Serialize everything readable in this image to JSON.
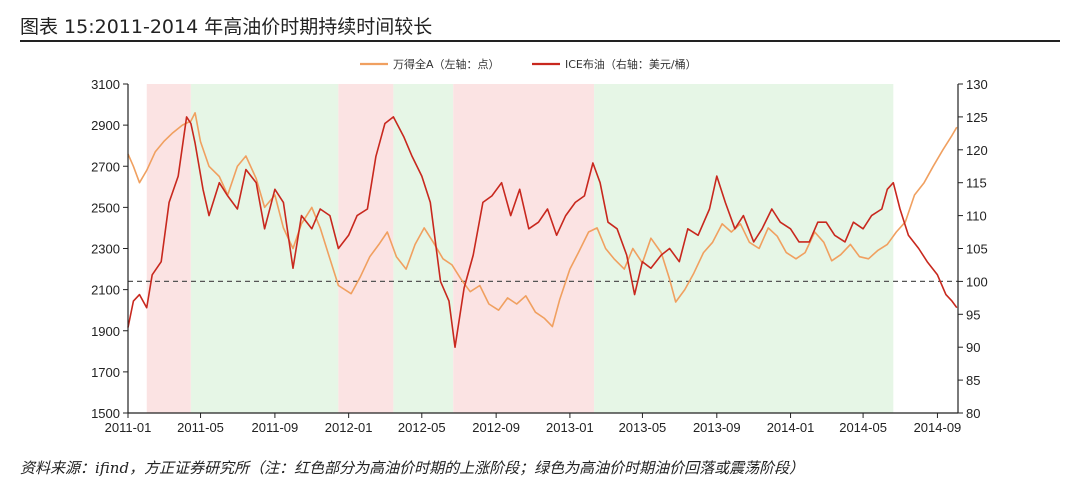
{
  "figure": {
    "title": "图表 15:2011-2014 年高油价时期持续时间较长",
    "source": "资料来源：ifind，方正证券研究所（注：红色部分为高油价时期的上涨阶段；绿色为高油价时期油价回落或震荡阶段）"
  },
  "chart_data": {
    "type": "line",
    "legend": [
      "万得全A（左轴：点）",
      "ICE布油（右轴：美元/桶）"
    ],
    "legend_position": "top-center",
    "x_ticks": [
      "2011-01",
      "2011-05",
      "2011-09",
      "2012-01",
      "2012-05",
      "2012-09",
      "2013-01",
      "2013-05",
      "2013-09",
      "2014-01",
      "2014-05",
      "2014-09"
    ],
    "x_range": [
      "2011-01-01",
      "2014-10-05"
    ],
    "y_left_ticks": [
      "3100",
      "2900",
      "2700",
      "2500",
      "2300",
      "2100",
      "1900",
      "1700",
      "1500"
    ],
    "y_left_range": [
      1500,
      3100
    ],
    "y_right_ticks": [
      "130",
      "125",
      "120",
      "115",
      "110",
      "105",
      "100",
      "95",
      "90",
      "85",
      "80"
    ],
    "y_right_range": [
      80,
      130
    ],
    "reference_line": {
      "axis": "right",
      "value": 100,
      "style": "dashed"
    },
    "shaded_periods": [
      {
        "phase": "rise",
        "color": "#fbe3e3",
        "start": "2011-02-01",
        "end": "2011-04-15"
      },
      {
        "phase": "fall_or_range",
        "color": "#e6f6e6",
        "start": "2011-04-15",
        "end": "2011-12-15"
      },
      {
        "phase": "rise",
        "color": "#fbe3e3",
        "start": "2011-12-15",
        "end": "2012-03-15"
      },
      {
        "phase": "fall_or_range",
        "color": "#e6f6e6",
        "start": "2012-03-15",
        "end": "2012-06-22"
      },
      {
        "phase": "rise",
        "color": "#fbe3e3",
        "start": "2012-06-22",
        "end": "2013-02-10"
      },
      {
        "phase": "fall_or_range",
        "color": "#e6f6e6",
        "start": "2013-02-10",
        "end": "2014-06-20"
      }
    ],
    "series": [
      {
        "name": "万得全A（左轴：点）",
        "axis": "left",
        "color": "#f0a060",
        "points": [
          [
            "2011-01-01",
            2760
          ],
          [
            "2011-01-10",
            2700
          ],
          [
            "2011-01-20",
            2620
          ],
          [
            "2011-02-01",
            2680
          ],
          [
            "2011-02-15",
            2770
          ],
          [
            "2011-03-01",
            2820
          ],
          [
            "2011-03-15",
            2860
          ],
          [
            "2011-04-01",
            2900
          ],
          [
            "2011-04-15",
            2920
          ],
          [
            "2011-04-22",
            2960
          ],
          [
            "2011-05-01",
            2820
          ],
          [
            "2011-05-15",
            2700
          ],
          [
            "2011-06-01",
            2650
          ],
          [
            "2011-06-15",
            2560
          ],
          [
            "2011-07-01",
            2700
          ],
          [
            "2011-07-15",
            2750
          ],
          [
            "2011-08-01",
            2640
          ],
          [
            "2011-08-15",
            2500
          ],
          [
            "2011-09-01",
            2560
          ],
          [
            "2011-09-15",
            2400
          ],
          [
            "2011-10-01",
            2300
          ],
          [
            "2011-10-15",
            2420
          ],
          [
            "2011-11-01",
            2500
          ],
          [
            "2011-11-15",
            2400
          ],
          [
            "2011-12-01",
            2250
          ],
          [
            "2011-12-15",
            2120
          ],
          [
            "2012-01-05",
            2080
          ],
          [
            "2012-01-20",
            2160
          ],
          [
            "2012-02-05",
            2260
          ],
          [
            "2012-02-20",
            2320
          ],
          [
            "2012-03-05",
            2380
          ],
          [
            "2012-03-20",
            2260
          ],
          [
            "2012-04-05",
            2200
          ],
          [
            "2012-04-20",
            2320
          ],
          [
            "2012-05-05",
            2400
          ],
          [
            "2012-05-20",
            2330
          ],
          [
            "2012-06-05",
            2250
          ],
          [
            "2012-06-20",
            2220
          ],
          [
            "2012-07-05",
            2150
          ],
          [
            "2012-07-20",
            2090
          ],
          [
            "2012-08-05",
            2120
          ],
          [
            "2012-08-20",
            2030
          ],
          [
            "2012-09-05",
            2000
          ],
          [
            "2012-09-20",
            2060
          ],
          [
            "2012-10-05",
            2030
          ],
          [
            "2012-10-20",
            2070
          ],
          [
            "2012-11-05",
            1990
          ],
          [
            "2012-11-20",
            1960
          ],
          [
            "2012-12-03",
            1920
          ],
          [
            "2012-12-15",
            2050
          ],
          [
            "2013-01-01",
            2200
          ],
          [
            "2013-01-15",
            2280
          ],
          [
            "2013-02-01",
            2380
          ],
          [
            "2013-02-15",
            2400
          ],
          [
            "2013-03-01",
            2300
          ],
          [
            "2013-03-15",
            2250
          ],
          [
            "2013-04-01",
            2200
          ],
          [
            "2013-04-15",
            2300
          ],
          [
            "2013-05-01",
            2230
          ],
          [
            "2013-05-15",
            2350
          ],
          [
            "2013-06-01",
            2280
          ],
          [
            "2013-06-15",
            2150
          ],
          [
            "2013-06-25",
            2040
          ],
          [
            "2013-07-10",
            2100
          ],
          [
            "2013-07-25",
            2180
          ],
          [
            "2013-08-10",
            2280
          ],
          [
            "2013-08-25",
            2330
          ],
          [
            "2013-09-10",
            2420
          ],
          [
            "2013-09-25",
            2380
          ],
          [
            "2013-10-10",
            2420
          ],
          [
            "2013-10-25",
            2330
          ],
          [
            "2013-11-10",
            2300
          ],
          [
            "2013-11-25",
            2400
          ],
          [
            "2013-12-10",
            2360
          ],
          [
            "2013-12-25",
            2280
          ],
          [
            "2014-01-10",
            2250
          ],
          [
            "2014-01-25",
            2280
          ],
          [
            "2014-02-10",
            2380
          ],
          [
            "2014-02-25",
            2330
          ],
          [
            "2014-03-10",
            2240
          ],
          [
            "2014-03-25",
            2270
          ],
          [
            "2014-04-10",
            2320
          ],
          [
            "2014-04-25",
            2260
          ],
          [
            "2014-05-10",
            2250
          ],
          [
            "2014-05-25",
            2290
          ],
          [
            "2014-06-10",
            2320
          ],
          [
            "2014-06-25",
            2380
          ],
          [
            "2014-07-10",
            2430
          ],
          [
            "2014-07-25",
            2560
          ],
          [
            "2014-08-10",
            2620
          ],
          [
            "2014-08-25",
            2700
          ],
          [
            "2014-09-10",
            2780
          ],
          [
            "2014-09-25",
            2850
          ],
          [
            "2014-10-03",
            2890
          ]
        ]
      },
      {
        "name": "ICE布油（右轴：美元/桶）",
        "axis": "right",
        "color": "#c8281e",
        "points": [
          [
            "2011-01-01",
            93
          ],
          [
            "2011-01-10",
            97
          ],
          [
            "2011-01-20",
            98
          ],
          [
            "2011-02-01",
            96
          ],
          [
            "2011-02-10",
            101
          ],
          [
            "2011-02-25",
            103
          ],
          [
            "2011-03-10",
            112
          ],
          [
            "2011-03-25",
            116
          ],
          [
            "2011-04-08",
            125
          ],
          [
            "2011-04-15",
            124
          ],
          [
            "2011-04-22",
            121
          ],
          [
            "2011-05-05",
            114
          ],
          [
            "2011-05-15",
            110
          ],
          [
            "2011-06-01",
            115
          ],
          [
            "2011-06-15",
            113
          ],
          [
            "2011-07-01",
            111
          ],
          [
            "2011-07-15",
            117
          ],
          [
            "2011-08-01",
            115
          ],
          [
            "2011-08-15",
            108
          ],
          [
            "2011-09-01",
            114
          ],
          [
            "2011-09-15",
            112
          ],
          [
            "2011-10-01",
            102
          ],
          [
            "2011-10-15",
            110
          ],
          [
            "2011-11-01",
            108
          ],
          [
            "2011-11-15",
            111
          ],
          [
            "2011-12-01",
            110
          ],
          [
            "2011-12-15",
            105
          ],
          [
            "2012-01-01",
            107
          ],
          [
            "2012-01-15",
            110
          ],
          [
            "2012-02-01",
            111
          ],
          [
            "2012-02-15",
            119
          ],
          [
            "2012-03-01",
            124
          ],
          [
            "2012-03-15",
            125
          ],
          [
            "2012-04-01",
            122
          ],
          [
            "2012-04-15",
            119
          ],
          [
            "2012-05-01",
            116
          ],
          [
            "2012-05-15",
            112
          ],
          [
            "2012-06-01",
            100
          ],
          [
            "2012-06-15",
            97
          ],
          [
            "2012-06-25",
            90
          ],
          [
            "2012-07-10",
            99
          ],
          [
            "2012-07-25",
            104
          ],
          [
            "2012-08-10",
            112
          ],
          [
            "2012-08-25",
            113
          ],
          [
            "2012-09-10",
            115
          ],
          [
            "2012-09-25",
            110
          ],
          [
            "2012-10-10",
            114
          ],
          [
            "2012-10-25",
            108
          ],
          [
            "2012-11-10",
            109
          ],
          [
            "2012-11-25",
            111
          ],
          [
            "2012-12-10",
            107
          ],
          [
            "2012-12-25",
            110
          ],
          [
            "2013-01-10",
            112
          ],
          [
            "2013-01-25",
            113
          ],
          [
            "2013-02-08",
            118
          ],
          [
            "2013-02-20",
            115
          ],
          [
            "2013-03-05",
            109
          ],
          [
            "2013-03-20",
            108
          ],
          [
            "2013-04-05",
            104
          ],
          [
            "2013-04-18",
            98
          ],
          [
            "2013-05-01",
            103
          ],
          [
            "2013-05-15",
            102
          ],
          [
            "2013-06-01",
            104
          ],
          [
            "2013-06-15",
            105
          ],
          [
            "2013-07-01",
            103
          ],
          [
            "2013-07-15",
            108
          ],
          [
            "2013-08-01",
            107
          ],
          [
            "2013-08-20",
            111
          ],
          [
            "2013-09-01",
            116
          ],
          [
            "2013-09-15",
            112
          ],
          [
            "2013-10-01",
            108
          ],
          [
            "2013-10-15",
            110
          ],
          [
            "2013-11-01",
            106
          ],
          [
            "2013-11-15",
            108
          ],
          [
            "2013-12-01",
            111
          ],
          [
            "2013-12-15",
            109
          ],
          [
            "2014-01-01",
            108
          ],
          [
            "2014-01-15",
            106
          ],
          [
            "2014-02-01",
            106
          ],
          [
            "2014-02-15",
            109
          ],
          [
            "2014-03-01",
            109
          ],
          [
            "2014-03-15",
            107
          ],
          [
            "2014-04-01",
            106
          ],
          [
            "2014-04-15",
            109
          ],
          [
            "2014-05-01",
            108
          ],
          [
            "2014-05-15",
            110
          ],
          [
            "2014-06-01",
            111
          ],
          [
            "2014-06-10",
            114
          ],
          [
            "2014-06-20",
            115
          ],
          [
            "2014-07-01",
            111
          ],
          [
            "2014-07-15",
            107
          ],
          [
            "2014-08-01",
            105
          ],
          [
            "2014-08-15",
            103
          ],
          [
            "2014-09-01",
            101
          ],
          [
            "2014-09-15",
            98
          ],
          [
            "2014-09-25",
            97
          ],
          [
            "2014-10-03",
            96
          ]
        ]
      }
    ]
  }
}
